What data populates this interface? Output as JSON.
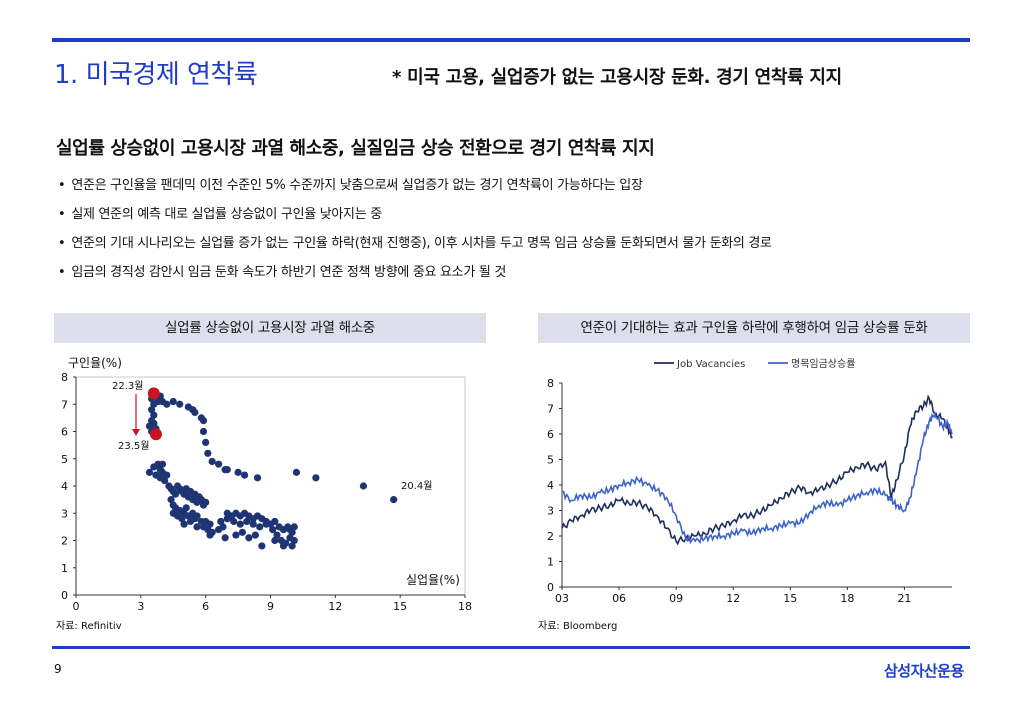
{
  "page": {
    "title": "1. 미국경제 연착륙",
    "subtitle": "* 미국 고용,  실업증가 없는 고용시장 둔화. 경기 연착륙 지지",
    "headline": "실업률 상승없이 고용시장 과열 해소중, 실질임금 상승 전환으로 경기 연착륙 지지",
    "bullets": [
      "연준은 구인율을 팬데믹 이전 수준인 5% 수준까지 낮춤으로써 실업증가 없는 경기 연착륙이 가능하다는 입장",
      "실제 연준의 예측 대로 실업률 상승없이 구인율 낮아지는 중",
      "연준의 기대 시나리오는 실업률 증가 없는 구인율 하락(현재 진행중), 이후 시차를 두고 명목 임금 상승률 둔화되면서 물가 둔화의 경로",
      "임금의 경직성 감안시 임금 둔화 속도가 하반기 연준 정책 방향에 중요 요소가 될 것"
    ],
    "page_number": "9",
    "brand": "삼성자산운용"
  },
  "panels": {
    "left_title": "실업률 상승없이 고용시장 과열 해소중",
    "right_title": "연준이 기대하는 효과 구인율 하락에 후행하여 임금 상승률 둔화",
    "left_source": "자료: Refinitiv",
    "right_source": "자료: Bloomberg"
  },
  "colors": {
    "accent": "#1e3ec8",
    "dot": "#1f3472",
    "highlight": "#c8141e",
    "line_dark": "#1f2d5c",
    "line_light": "#3f63c8"
  },
  "chart_data": [
    {
      "type": "scatter",
      "title": "실업률 상승없이 고용시장 과열 해소중",
      "xlabel": "실업율(%)",
      "ylabel": "구인율(%)",
      "xlim": [
        0,
        18
      ],
      "ylim": [
        0,
        8
      ],
      "xticks": [
        "0",
        "3",
        "6",
        "9",
        "12",
        "15",
        "18"
      ],
      "yticks": [
        "0",
        "1",
        "2",
        "3",
        "4",
        "5",
        "6",
        "7",
        "8"
      ],
      "annotations": {
        "start": "22.3월",
        "end": "23.5월",
        "outlier": "20.4월"
      },
      "highlight_points": [
        [
          3.6,
          7.4
        ],
        [
          3.7,
          5.9
        ]
      ],
      "points": [
        [
          3.5,
          7.2
        ],
        [
          3.6,
          7.0
        ],
        [
          3.5,
          6.8
        ],
        [
          3.6,
          6.6
        ],
        [
          3.5,
          6.4
        ],
        [
          3.4,
          6.2
        ],
        [
          3.6,
          6.3
        ],
        [
          3.5,
          6.0
        ],
        [
          3.7,
          6.1
        ],
        [
          3.8,
          7.1
        ],
        [
          3.9,
          7.3
        ],
        [
          4.0,
          7.1
        ],
        [
          4.2,
          7.0
        ],
        [
          4.5,
          7.1
        ],
        [
          4.8,
          7.0
        ],
        [
          5.2,
          6.9
        ],
        [
          5.4,
          6.8
        ],
        [
          5.5,
          6.7
        ],
        [
          5.8,
          6.5
        ],
        [
          5.9,
          6.4
        ],
        [
          5.9,
          6.0
        ],
        [
          6.0,
          5.6
        ],
        [
          6.1,
          5.2
        ],
        [
          6.3,
          4.9
        ],
        [
          6.6,
          4.8
        ],
        [
          6.9,
          4.6
        ],
        [
          7.0,
          4.6
        ],
        [
          7.5,
          4.5
        ],
        [
          7.8,
          4.4
        ],
        [
          8.4,
          4.3
        ],
        [
          10.2,
          4.5
        ],
        [
          11.1,
          4.3
        ],
        [
          13.3,
          4.0
        ],
        [
          14.7,
          3.5
        ],
        [
          3.4,
          4.5
        ],
        [
          3.6,
          4.7
        ],
        [
          3.8,
          4.8
        ],
        [
          3.9,
          4.6
        ],
        [
          4.0,
          4.5
        ],
        [
          3.7,
          4.4
        ],
        [
          3.9,
          4.3
        ],
        [
          4.1,
          4.2
        ],
        [
          4.2,
          4.4
        ],
        [
          4.0,
          4.8
        ],
        [
          4.3,
          4.0
        ],
        [
          4.4,
          3.9
        ],
        [
          4.5,
          3.8
        ],
        [
          4.6,
          3.7
        ],
        [
          4.7,
          4.0
        ],
        [
          4.8,
          3.9
        ],
        [
          4.9,
          3.8
        ],
        [
          5.0,
          3.7
        ],
        [
          5.1,
          3.9
        ],
        [
          5.2,
          3.6
        ],
        [
          5.3,
          3.8
        ],
        [
          5.4,
          3.5
        ],
        [
          5.5,
          3.7
        ],
        [
          5.6,
          3.4
        ],
        [
          5.7,
          3.6
        ],
        [
          5.8,
          3.5
        ],
        [
          5.9,
          3.3
        ],
        [
          6.0,
          3.4
        ],
        [
          4.4,
          3.5
        ],
        [
          4.5,
          3.3
        ],
        [
          4.6,
          3.2
        ],
        [
          4.8,
          3.1
        ],
        [
          5.0,
          3.0
        ],
        [
          5.1,
          3.2
        ],
        [
          5.2,
          2.9
        ],
        [
          5.4,
          3.0
        ],
        [
          5.5,
          2.8
        ],
        [
          5.6,
          2.9
        ],
        [
          5.8,
          2.7
        ],
        [
          6.0,
          2.7
        ],
        [
          6.2,
          2.6
        ],
        [
          4.5,
          3.0
        ],
        [
          4.7,
          2.9
        ],
        [
          4.9,
          2.8
        ],
        [
          5.0,
          2.6
        ],
        [
          5.3,
          2.7
        ],
        [
          5.6,
          2.5
        ],
        [
          5.9,
          2.5
        ],
        [
          6.1,
          2.4
        ],
        [
          6.3,
          2.3
        ],
        [
          6.2,
          2.2
        ],
        [
          6.6,
          2.4
        ],
        [
          6.8,
          2.5
        ],
        [
          7.0,
          3.0
        ],
        [
          7.2,
          2.9
        ],
        [
          7.4,
          3.0
        ],
        [
          7.6,
          2.9
        ],
        [
          7.8,
          3.0
        ],
        [
          8.0,
          2.9
        ],
        [
          8.2,
          2.8
        ],
        [
          8.4,
          2.9
        ],
        [
          8.6,
          2.8
        ],
        [
          8.8,
          2.7
        ],
        [
          9.0,
          2.6
        ],
        [
          9.2,
          2.7
        ],
        [
          9.4,
          2.5
        ],
        [
          9.6,
          2.4
        ],
        [
          9.8,
          2.5
        ],
        [
          10.0,
          2.3
        ],
        [
          9.9,
          2.1
        ],
        [
          10.1,
          2.0
        ],
        [
          10.0,
          1.8
        ],
        [
          9.7,
          1.9
        ],
        [
          9.5,
          2.0
        ],
        [
          9.3,
          2.2
        ],
        [
          9.1,
          2.4
        ],
        [
          8.8,
          2.6
        ],
        [
          8.5,
          2.5
        ],
        [
          8.2,
          2.6
        ],
        [
          7.9,
          2.7
        ],
        [
          7.6,
          2.6
        ],
        [
          7.3,
          2.7
        ],
        [
          7.0,
          2.8
        ],
        [
          6.7,
          2.7
        ],
        [
          7.4,
          2.2
        ],
        [
          8.0,
          2.1
        ],
        [
          8.6,
          1.8
        ],
        [
          9.2,
          2.0
        ],
        [
          9.9,
          2.4
        ],
        [
          8.3,
          2.2
        ],
        [
          7.7,
          2.3
        ],
        [
          6.9,
          2.1
        ],
        [
          10.1,
          2.5
        ],
        [
          9.6,
          1.8
        ]
      ]
    },
    {
      "type": "line",
      "title": "연준이 기대하는 효과 구인율 하락에 후행하여 임금 상승률 둔화",
      "xlim": [
        2003,
        2023.5
      ],
      "ylim": [
        0,
        8
      ],
      "xticks": [
        "03",
        "06",
        "09",
        "12",
        "15",
        "18",
        "21"
      ],
      "yticks": [
        "0",
        "1",
        "2",
        "3",
        "4",
        "5",
        "6",
        "7",
        "8"
      ],
      "series": [
        {
          "name": "Job Vacancies",
          "x": [
            2003,
            2003.5,
            2004,
            2004.5,
            2005,
            2005.5,
            2006,
            2006.5,
            2007,
            2007.5,
            2008,
            2008.5,
            2009,
            2009.5,
            2010,
            2010.5,
            2011,
            2011.5,
            2012,
            2012.5,
            2013,
            2013.5,
            2014,
            2014.5,
            2015,
            2015.5,
            2016,
            2016.5,
            2017,
            2017.5,
            2018,
            2018.5,
            2019,
            2019.5,
            2020,
            2020.3,
            2020.6,
            2021,
            2021.3,
            2021.6,
            2022,
            2022.3,
            2022.6,
            2023,
            2023.3,
            2023.5
          ],
          "y": [
            2.3,
            2.6,
            2.8,
            3.0,
            3.1,
            3.2,
            3.4,
            3.3,
            3.3,
            3.1,
            2.8,
            2.3,
            1.8,
            1.9,
            2.0,
            2.1,
            2.3,
            2.4,
            2.6,
            2.8,
            2.8,
            3.0,
            3.2,
            3.5,
            3.7,
            3.9,
            3.7,
            3.8,
            4.0,
            4.2,
            4.5,
            4.7,
            4.8,
            4.6,
            4.9,
            3.5,
            4.2,
            5.2,
            6.3,
            6.9,
            7.1,
            7.4,
            6.8,
            6.6,
            6.2,
            5.9
          ]
        },
        {
          "name": "명목임금상승률",
          "x": [
            2003,
            2003.5,
            2004,
            2004.5,
            2005,
            2005.5,
            2006,
            2006.5,
            2007,
            2007.5,
            2008,
            2008.5,
            2009,
            2009.5,
            2010,
            2010.5,
            2011,
            2011.5,
            2012,
            2012.5,
            2013,
            2013.5,
            2014,
            2014.5,
            2015,
            2015.5,
            2016,
            2016.5,
            2017,
            2017.5,
            2018,
            2018.5,
            2019,
            2019.5,
            2020,
            2020.3,
            2020.6,
            2021,
            2021.3,
            2021.6,
            2022,
            2022.3,
            2022.6,
            2023,
            2023.3,
            2023.5
          ],
          "y": [
            3.7,
            3.4,
            3.6,
            3.5,
            3.7,
            3.8,
            4.0,
            4.1,
            4.2,
            4.0,
            3.8,
            3.5,
            2.8,
            1.9,
            1.8,
            1.9,
            2.0,
            2.0,
            2.1,
            2.2,
            2.1,
            2.3,
            2.3,
            2.4,
            2.5,
            2.5,
            2.9,
            3.2,
            3.3,
            3.2,
            3.4,
            3.6,
            3.7,
            3.8,
            3.6,
            3.4,
            3.2,
            3.0,
            3.5,
            4.4,
            5.8,
            6.5,
            6.8,
            6.3,
            6.4,
            6.0
          ]
        }
      ]
    }
  ]
}
